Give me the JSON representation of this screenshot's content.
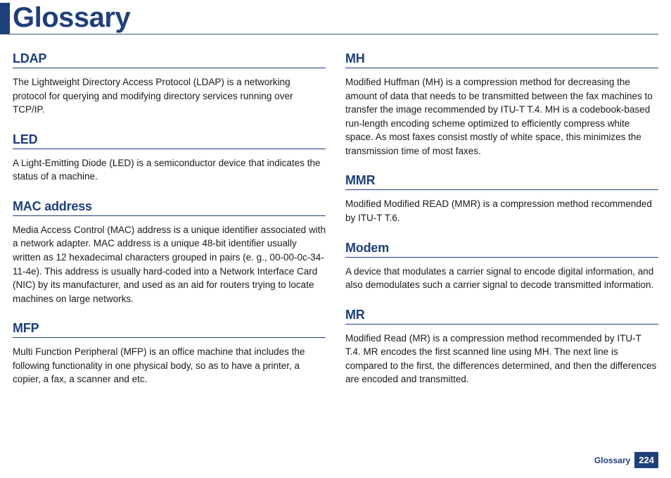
{
  "page": {
    "title": "Glossary",
    "footer_label": "Glossary",
    "page_number": "224"
  },
  "left": [
    {
      "term": "LDAP",
      "def": "The Lightweight Directory Access Protocol (LDAP) is a networking protocol for querying and modifying directory services running over TCP/IP."
    },
    {
      "term": "LED",
      "def": "A Light-Emitting Diode (LED) is a semiconductor device that indicates the status of a machine."
    },
    {
      "term": "MAC address",
      "def": "Media Access Control (MAC) address is a unique identifier associated with a network adapter. MAC address is a unique 48-bit identifier usually written as 12 hexadecimal characters grouped in pairs (e. g., 00-00-0c-34-11-4e). This address is usually hard-coded into a Network Interface Card (NIC) by its manufacturer, and used as an aid for routers trying to locate machines on large networks."
    },
    {
      "term": "MFP",
      "def": "Multi Function Peripheral (MFP) is an office machine that includes the following functionality in one physical body, so as to have a printer, a copier, a fax, a scanner and etc."
    }
  ],
  "right": [
    {
      "term": "MH",
      "def": "Modified Huffman (MH) is a compression method for decreasing the amount of data that needs to be transmitted between the fax machines to transfer the image recommended by ITU-T T.4. MH is a codebook-based run-length encoding scheme optimized to efficiently compress white space. As most faxes consist mostly of white space, this minimizes the transmission time of most faxes."
    },
    {
      "term": "MMR",
      "def": "Modified Modified READ (MMR) is a compression method recommended by ITU-T T.6."
    },
    {
      "term": "Modem",
      "def": "A device that modulates a carrier signal to encode digital information, and also demodulates such a carrier signal to decode transmitted information."
    },
    {
      "term": "MR",
      "def": "Modified Read (MR) is a compression method recommended by ITU-T T.4. MR encodes the first scanned line using MH. The next line is compared to the first, the differences determined, and then the differences are encoded and transmitted."
    }
  ]
}
